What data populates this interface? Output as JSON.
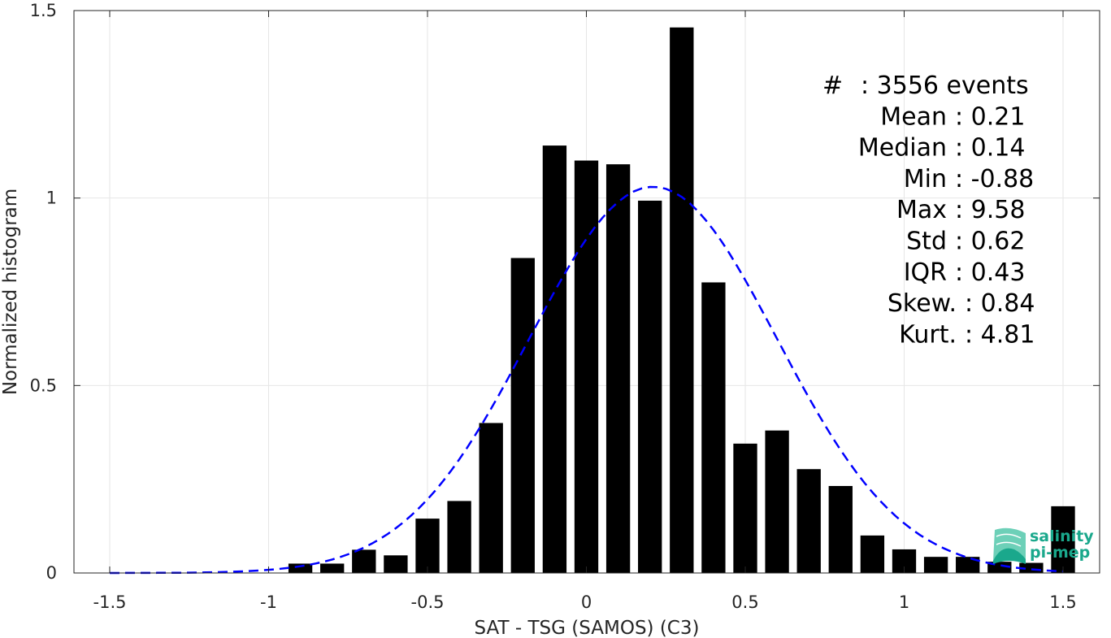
{
  "chart_data": {
    "type": "bar",
    "title": "",
    "xlabel": "SAT - TSG (SAMOS) (C3)",
    "ylabel": "Normalized histogram",
    "xlim": [
      -1.5,
      1.5
    ],
    "ylim": [
      0,
      1.5
    ],
    "xticks": [
      -1.5,
      -1,
      -0.5,
      0,
      0.5,
      1,
      1.5
    ],
    "xtick_labels": [
      "-1.5",
      "-1",
      "-0.5",
      "0",
      "0.5",
      "1",
      "1.5"
    ],
    "yticks": [
      0,
      0.5,
      1,
      1.5
    ],
    "ytick_labels": [
      "0",
      "0.5",
      "1",
      "1.5"
    ],
    "grid": true,
    "bar_width": 0.075,
    "bars": {
      "x": [
        -0.9,
        -0.8,
        -0.7,
        -0.6,
        -0.5,
        -0.4,
        -0.3,
        -0.2,
        -0.1,
        0.0,
        0.1,
        0.2,
        0.3,
        0.4,
        0.5,
        0.6,
        0.7,
        0.8,
        0.9,
        1.0,
        1.1,
        1.2,
        1.3,
        1.4,
        1.5
      ],
      "values": [
        0.025,
        0.025,
        0.062,
        0.047,
        0.145,
        0.192,
        0.4,
        0.84,
        1.14,
        1.1,
        1.09,
        0.993,
        1.455,
        0.775,
        0.345,
        0.38,
        0.277,
        0.232,
        0.1,
        0.063,
        0.043,
        0.043,
        0.03,
        0.027,
        0.178
      ],
      "color": "#000000"
    },
    "gaussian_fit": {
      "mean": 0.21,
      "std": 0.39,
      "peak": 1.03,
      "x_range": [
        -1.5,
        1.5
      ],
      "style": "dashed",
      "color": "#0000ff"
    },
    "stats": [
      {
        "label": "#  ",
        "value": ": 3556 events"
      },
      {
        "label": "Mean",
        "value": ": 0.21"
      },
      {
        "label": "Median",
        "value": ": 0.14"
      },
      {
        "label": "Min",
        "value": ": -0.88"
      },
      {
        "label": "Max",
        "value": ": 9.58"
      },
      {
        "label": "Std",
        "value": ": 0.62"
      },
      {
        "label": "IQR",
        "value": ": 0.43"
      },
      {
        "label": "Skew.",
        "value": ": 0.84"
      },
      {
        "label": "Kurt.",
        "value": ": 4.81"
      }
    ]
  },
  "logo": {
    "line1": "salinity",
    "line2": "pi-mep",
    "color": "#1aa88c"
  }
}
